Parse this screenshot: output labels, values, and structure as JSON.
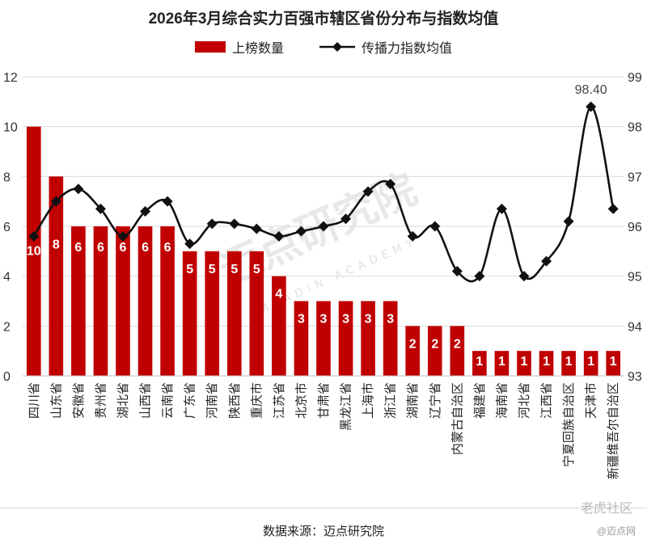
{
  "title": "2026年3月综合实力百强市辖区省份分布与指数均值",
  "source": "数据来源：迈点研究院",
  "watermark": "迈点研究院",
  "watermark_sub": "MEADIN ACADEMY",
  "footer_watermark": "老虎社区",
  "footer_watermark2": "@迈点网",
  "colors": {
    "bar": "#c00000",
    "line": "#111111",
    "bar_label": "#ffffff"
  },
  "chart_data": {
    "type": "bar",
    "categories": [
      "四川省",
      "山东省",
      "安徽省",
      "贵州省",
      "湖北省",
      "山西省",
      "云南省",
      "广东省",
      "河南省",
      "陕西省",
      "重庆市",
      "江苏省",
      "北京市",
      "甘肃省",
      "黑龙江省",
      "上海市",
      "浙江省",
      "湖南省",
      "辽宁省",
      "内蒙古自治区",
      "福建省",
      "海南省",
      "河北省",
      "江西省",
      "宁夏回族自治区",
      "天津市",
      "新疆维吾尔自治区"
    ],
    "series": [
      {
        "name": "上榜数量",
        "type": "bar",
        "axis": "left",
        "values": [
          10,
          8,
          6,
          6,
          6,
          6,
          6,
          5,
          5,
          5,
          5,
          4,
          3,
          3,
          3,
          3,
          3,
          2,
          2,
          2,
          1,
          1,
          1,
          1,
          1,
          1,
          1
        ]
      },
      {
        "name": "传播力指数均值",
        "type": "line",
        "axis": "right",
        "values": [
          95.8,
          96.5,
          96.75,
          96.35,
          95.8,
          96.3,
          96.5,
          95.65,
          96.05,
          96.05,
          95.95,
          95.8,
          95.9,
          96.0,
          96.15,
          96.7,
          96.85,
          95.8,
          96.0,
          95.1,
          95.0,
          96.35,
          95.0,
          95.3,
          96.1,
          98.4,
          96.35
        ]
      }
    ],
    "ylim": [
      0,
      12
    ],
    "yticks": [
      0,
      2,
      4,
      6,
      8,
      10,
      12
    ],
    "y2lim": [
      93,
      99
    ],
    "y2ticks": [
      93,
      94,
      95,
      96,
      97,
      98,
      99
    ],
    "annotation": "98.40",
    "grid": true,
    "legend": "top-center"
  }
}
